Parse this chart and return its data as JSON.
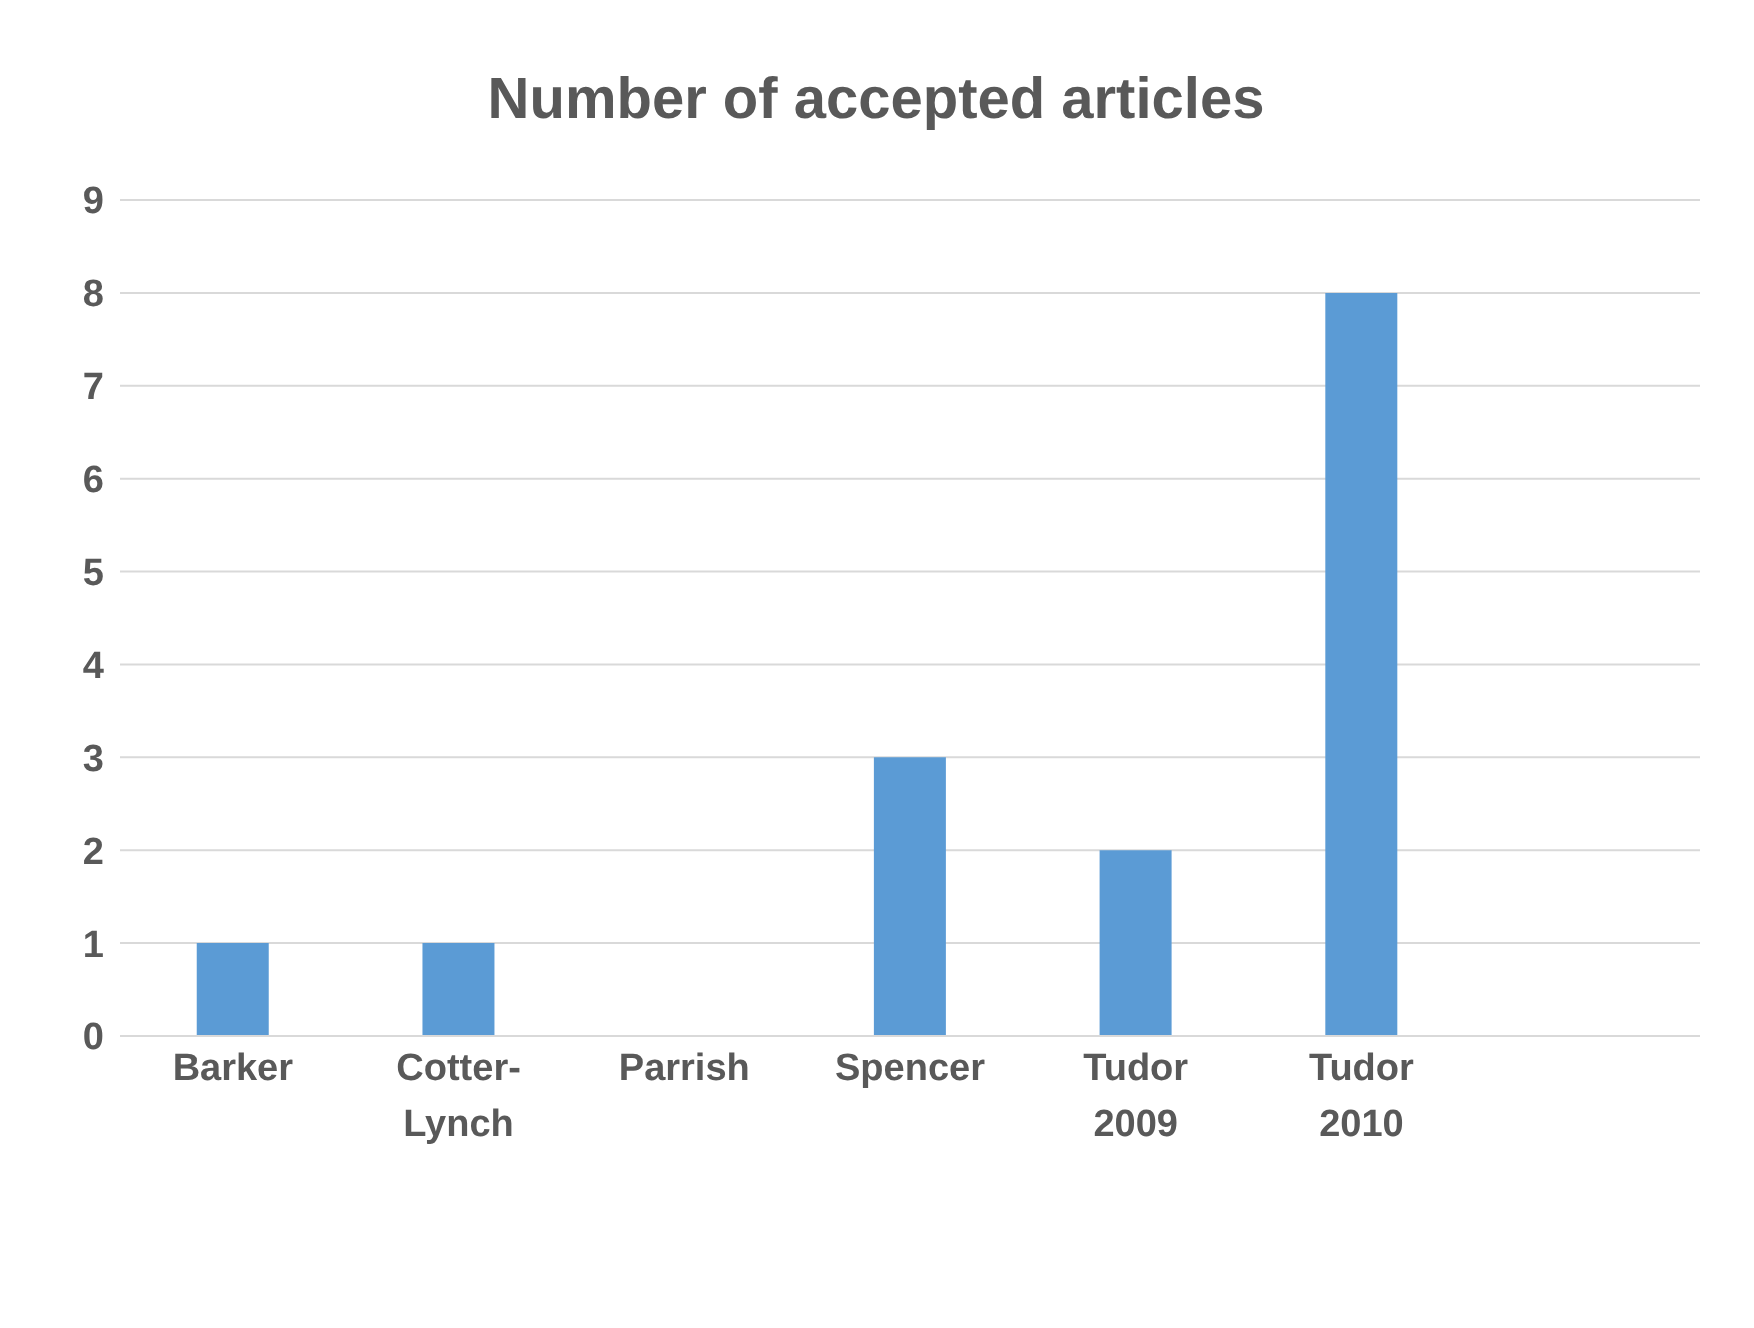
{
  "chart_data": {
    "type": "bar",
    "title": "Number of accepted articles",
    "categories": [
      "Barker",
      "Cotter-Lynch",
      "Parrish",
      "Spencer",
      "Tudor 2009",
      "Tudor 2010",
      null
    ],
    "values": [
      1,
      1,
      0,
      3,
      2,
      8,
      null
    ],
    "color": "#5b9bd5",
    "ylim": [
      0,
      9
    ],
    "yticks": [
      0,
      1,
      2,
      3,
      4,
      5,
      6,
      7,
      8,
      9
    ],
    "grid": "y"
  }
}
